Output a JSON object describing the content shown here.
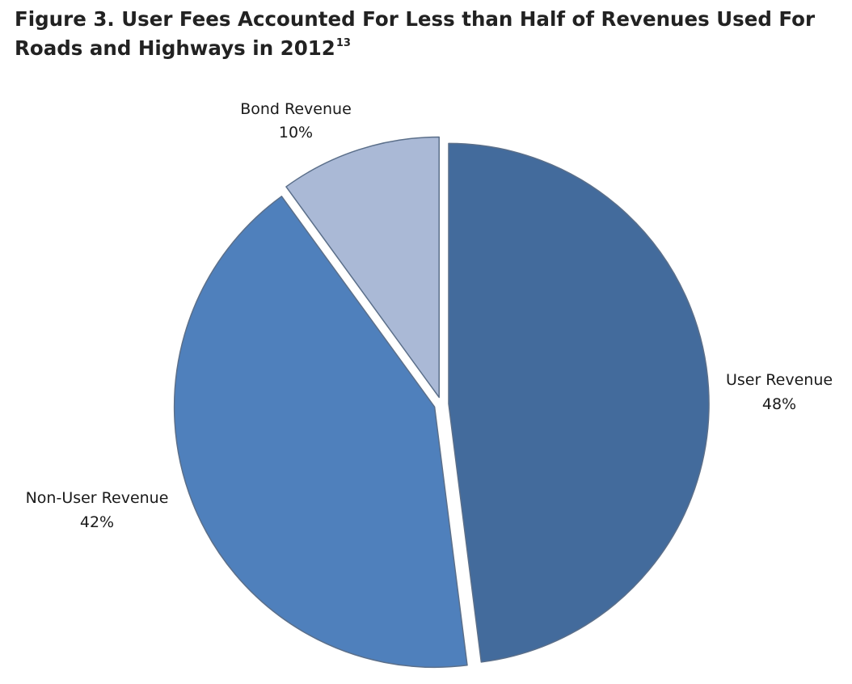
{
  "figure": {
    "title_line1": "Figure 3. User Fees Accounted For Less than Half of Revenues Used For",
    "title_line2": "Roads and Highways in 2012",
    "title_superscript": "13"
  },
  "chart_data": {
    "type": "pie",
    "title": "Figure 3. User Fees Accounted For Less than Half of Revenues Used For Roads and Highways in 2012",
    "unit": "%",
    "start_angle_deg": 0,
    "direction": "clockwise",
    "exploded": true,
    "legend": "none",
    "slices": [
      {
        "key": "user",
        "label": "User Revenue",
        "value": 48,
        "value_label": "48%",
        "color": "#436b9c"
      },
      {
        "key": "nonuser",
        "label": "Non-User Revenue",
        "value": 42,
        "value_label": "42%",
        "color": "#4f80bc"
      },
      {
        "key": "bond",
        "label": "Bond Revenue",
        "value": 10,
        "value_label": "10%",
        "color": "#aab9d6"
      }
    ]
  }
}
